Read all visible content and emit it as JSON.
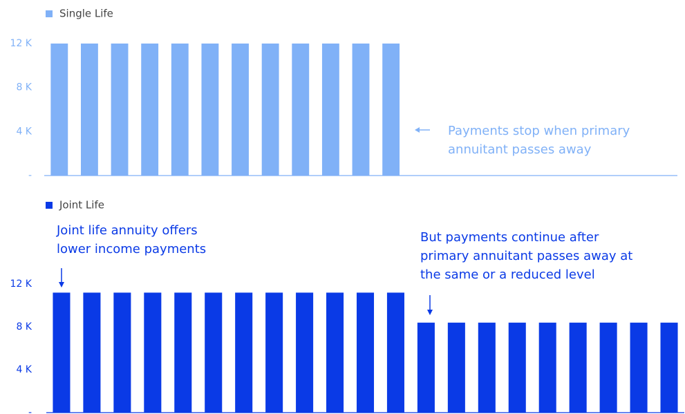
{
  "chart_data": [
    {
      "type": "bar",
      "legend": "Single Life",
      "color": "#80b1f7",
      "categories": [
        null,
        null,
        null,
        null,
        null,
        null,
        null,
        null,
        null,
        null,
        null,
        null,
        null,
        null,
        null,
        null,
        null,
        null,
        null,
        null,
        null
      ],
      "values": [
        12000,
        12000,
        12000,
        12000,
        12000,
        12000,
        12000,
        12000,
        12000,
        12000,
        12000,
        12000,
        0,
        0,
        0,
        0,
        0,
        0,
        0,
        0,
        0
      ],
      "ylim": [
        0,
        12000
      ],
      "yticks": [
        {
          "value": 0,
          "label": "-"
        },
        {
          "value": 4000,
          "label": "4 K"
        },
        {
          "value": 8000,
          "label": "8 K"
        },
        {
          "value": 12000,
          "label": "12 K"
        }
      ],
      "annotations": [
        {
          "lines": [
            "Payments stop when primary",
            "annuitant passes away"
          ]
        }
      ]
    },
    {
      "type": "bar",
      "legend": "Joint Life",
      "color": "#0a3ae6",
      "categories": [
        null,
        null,
        null,
        null,
        null,
        null,
        null,
        null,
        null,
        null,
        null,
        null,
        null,
        null,
        null,
        null,
        null,
        null,
        null,
        null,
        null
      ],
      "values": [
        11200,
        11200,
        11200,
        11200,
        11200,
        11200,
        11200,
        11200,
        11200,
        11200,
        11200,
        11200,
        8400,
        8400,
        8400,
        8400,
        8400,
        8400,
        8400,
        8400,
        8400
      ],
      "ylim": [
        0,
        12000
      ],
      "yticks": [
        {
          "value": 0,
          "label": "-"
        },
        {
          "value": 4000,
          "label": "4 K"
        },
        {
          "value": 8000,
          "label": "8 K"
        },
        {
          "value": 12000,
          "label": "12 K"
        }
      ],
      "annotations": [
        {
          "lines": [
            "Joint life annuity offers",
            "lower income payments"
          ]
        },
        {
          "lines": [
            "But payments continue after",
            "primary annuitant passes away at",
            "the same or a reduced level"
          ]
        }
      ]
    }
  ]
}
